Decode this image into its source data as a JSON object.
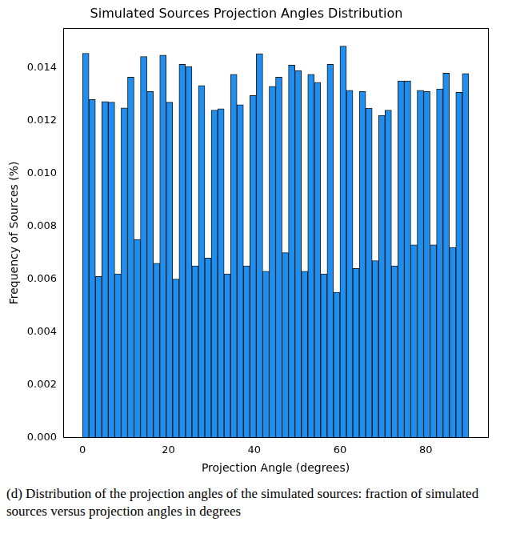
{
  "chart_data": {
    "type": "histogram",
    "title": "Simulated Sources Projection Angles Distribution",
    "x_label": "Projection Angle (degrees)",
    "y_label": "Frequency of Sources (%)",
    "caption": "(d) Distribution of the projection angles of the simulated sources: fraction of simulated sources versus projection angles in degrees",
    "bins": [
      0,
      1.5,
      3,
      4.5,
      6,
      7.5,
      9,
      10.5,
      12,
      13.5,
      15,
      16.5,
      18,
      19.5,
      21,
      22.5,
      24,
      25.5,
      27,
      28.5,
      30,
      31.5,
      33,
      34.5,
      36,
      37.5,
      39,
      40.5,
      42,
      43.5,
      45,
      46.5,
      48,
      49.5,
      51,
      52.5,
      54,
      55.5,
      57,
      58.5,
      60,
      61.5,
      63,
      64.5,
      66,
      67.5,
      69,
      70.5,
      72,
      73.5,
      75,
      76.5,
      78,
      79.5,
      81,
      82.5,
      84,
      85.5,
      87,
      88.5,
      90
    ],
    "values": [
      0.01455,
      0.0128,
      0.0061,
      0.01272,
      0.0127,
      0.0062,
      0.01248,
      0.01365,
      0.0075,
      0.01443,
      0.0131,
      0.0066,
      0.01448,
      0.0127,
      0.006,
      0.01413,
      0.01405,
      0.0065,
      0.01333,
      0.0068,
      0.0124,
      0.01245,
      0.0062,
      0.01375,
      0.0126,
      0.0065,
      0.01295,
      0.01453,
      0.0063,
      0.0133,
      0.01365,
      0.007,
      0.0141,
      0.0139,
      0.0063,
      0.01375,
      0.01345,
      0.0062,
      0.01413,
      0.0055,
      0.01482,
      0.01315,
      0.0064,
      0.0131,
      0.01247,
      0.0067,
      0.0122,
      0.0124,
      0.0065,
      0.0135,
      0.0135,
      0.0073,
      0.01315,
      0.0131,
      0.0073,
      0.0132,
      0.0138,
      0.0072,
      0.01307,
      0.01378
    ],
    "color": "#1e8ff0",
    "xlim": [
      -4.5,
      94.5
    ],
    "xticks": [
      0,
      20,
      40,
      60,
      80
    ],
    "ylim": [
      0,
      0.0155
    ],
    "yticks": [
      {
        "value": 0,
        "label": "0.000"
      },
      {
        "value": 0.002,
        "label": "0.002"
      },
      {
        "value": 0.004,
        "label": "0.004"
      },
      {
        "value": 0.006,
        "label": "0.006"
      },
      {
        "value": 0.008,
        "label": "0.008"
      },
      {
        "value": 0.01,
        "label": "0.010"
      },
      {
        "value": 0.012,
        "label": "0.012"
      },
      {
        "value": 0.014,
        "label": "0.014"
      }
    ],
    "grid": false
  }
}
